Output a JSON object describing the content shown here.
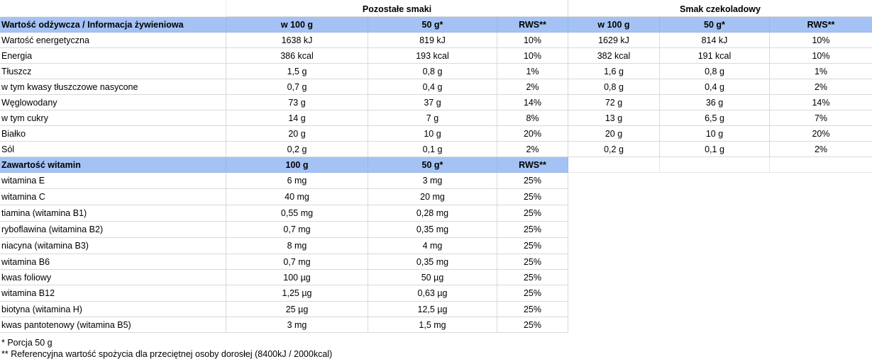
{
  "group_headers": {
    "left": "Pozostałe smaki",
    "right": "Smak czekoladowy"
  },
  "nutrition_header": [
    "Wartość odżywcza / Informacja żywieniowa",
    "w 100 g",
    "50 g*",
    "RWS**",
    "w 100 g",
    "50 g*",
    "RWS**"
  ],
  "nutrition_rows": [
    [
      "Wartość energetyczna",
      "1638 kJ",
      "819 kJ",
      "10%",
      "1629 kJ",
      "814 kJ",
      "10%"
    ],
    [
      "Energia",
      "386 kcal",
      "193 kcal",
      "10%",
      "382 kcal",
      "191 kcal",
      "10%"
    ],
    [
      "Tłuszcz",
      "1,5 g",
      "0,8 g",
      "1%",
      "1,6 g",
      "0,8 g",
      "1%"
    ],
    [
      "w tym kwasy tłuszczowe nasycone",
      "0,7 g",
      "0,4 g",
      "2%",
      "0,8 g",
      "0,4 g",
      "2%"
    ],
    [
      "Węglowodany",
      "73 g",
      "37 g",
      "14%",
      "72 g",
      "36 g",
      "14%"
    ],
    [
      "w tym cukry",
      "14 g",
      "7 g",
      "8%",
      "13 g",
      "6,5 g",
      "7%"
    ],
    [
      "Białko",
      "20 g",
      "10 g",
      "20%",
      "20 g",
      "10 g",
      "20%"
    ],
    [
      "Sól",
      "0,2 g",
      "0,1 g",
      "2%",
      "0,2 g",
      "0,1 g",
      "2%"
    ]
  ],
  "vitamin_header": [
    "Zawartość witamin",
    "100 g",
    "50 g*",
    "RWS**"
  ],
  "vitamin_rows": [
    [
      "witamina E",
      "6 mg",
      "3 mg",
      "25%"
    ],
    [
      "witamina C",
      "40 mg",
      "20 mg",
      "25%"
    ],
    [
      "tiamina (witamina B1)",
      "0,55 mg",
      "0,28 mg",
      "25%"
    ],
    [
      "ryboflawina (witamina B2)",
      "0,7 mg",
      "0,35 mg",
      "25%"
    ],
    [
      "niacyna (witamina B3)",
      "8 mg",
      "4 mg",
      "25%"
    ],
    [
      "witamina B6",
      "0,7 mg",
      "0,35 mg",
      "25%"
    ],
    [
      "kwas foliowy",
      "100 µg",
      "50 µg",
      "25%"
    ],
    [
      "witamina B12",
      "1,25 µg",
      "0,63 µg",
      "25%"
    ],
    [
      "biotyna (witamina H)",
      "25 µg",
      "12,5 µg",
      "25%"
    ],
    [
      "kwas pantotenowy (witamina B5)",
      "3 mg",
      "1,5 mg",
      "25%"
    ]
  ],
  "footnotes": [
    "* Porcja 50 g",
    "** Referencyjna wartość spożycia dla przeciętnej osoby dorosłej (8400kJ / 2000kcal)"
  ]
}
